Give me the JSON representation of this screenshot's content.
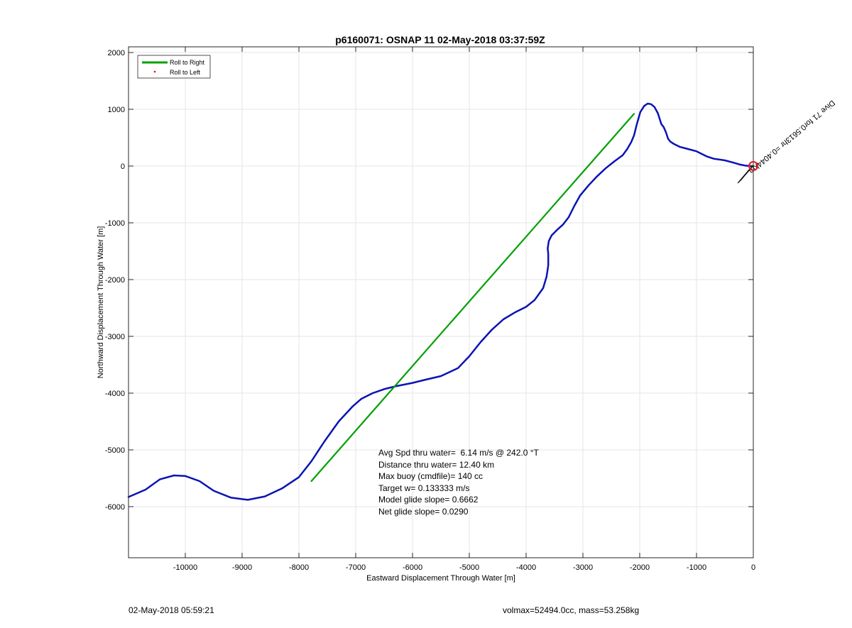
{
  "footer": {
    "timestamp": "02-May-2018 05:59:21",
    "volmax_mass": "volmax=52494.0cc, mass=53.258kg"
  },
  "chart_data": {
    "type": "line",
    "title": "p6160071: OSNAP 11 02-May-2018 03:37:59Z",
    "xlabel": "Eastward Displacement Through Water [m]",
    "ylabel": "Northward Displacement Through Water [m]",
    "xlim": [
      -11000,
      0
    ],
    "ylim": [
      -6900,
      2100
    ],
    "xticks": [
      -10000,
      -9000,
      -8000,
      -7000,
      -6000,
      -5000,
      -4000,
      -3000,
      -2000,
      -1000,
      0
    ],
    "yticks": [
      2000,
      1000,
      0,
      -1000,
      -2000,
      -3000,
      -4000,
      -5000,
      -6000
    ],
    "grid": true,
    "legend_position": "top-left",
    "legend": [
      {
        "label": "Roll to Right",
        "color": "#00a000",
        "marker": "line"
      },
      {
        "label": "Roll to Left",
        "color": "#ff0000",
        "marker": "dot"
      }
    ],
    "series": [
      {
        "color": "#0a14b4",
        "x": [
          -11000,
          -10700,
          -10450,
          -10200,
          -10000,
          -9750,
          -9500,
          -9200,
          -8900,
          -8600,
          -8300,
          -8000,
          -7780,
          -7550,
          -7300,
          -7050,
          -6900,
          -6700,
          -6500,
          -6300,
          -6000,
          -5800,
          -5500,
          -5200,
          -5000,
          -4800,
          -4600,
          -4400,
          -4200,
          -4000,
          -3850,
          -3700,
          -3640,
          -3610,
          -3610,
          -3620,
          -3600,
          -3550,
          -3450,
          -3350,
          -3250,
          -3150,
          -3050,
          -2900,
          -2750,
          -2600,
          -2450,
          -2300,
          -2220,
          -2150,
          -2100,
          -2050,
          -1990,
          -1920,
          -1860,
          -1800,
          -1740,
          -1680,
          -1620,
          -1580,
          -1540,
          -1500,
          -1460,
          -1400,
          -1300,
          -1150,
          -1000,
          -900,
          -820,
          -700,
          -500,
          -350,
          -250,
          -150,
          -60,
          0
        ],
        "y": [
          -5830,
          -5700,
          -5520,
          -5450,
          -5460,
          -5550,
          -5720,
          -5840,
          -5880,
          -5820,
          -5680,
          -5480,
          -5200,
          -4850,
          -4500,
          -4230,
          -4100,
          -4000,
          -3930,
          -3880,
          -3820,
          -3770,
          -3700,
          -3560,
          -3350,
          -3100,
          -2880,
          -2700,
          -2580,
          -2480,
          -2360,
          -2150,
          -1950,
          -1750,
          -1550,
          -1450,
          -1320,
          -1220,
          -1120,
          -1030,
          -900,
          -700,
          -520,
          -340,
          -180,
          -40,
          80,
          190,
          300,
          420,
          540,
          740,
          950,
          1060,
          1100,
          1090,
          1040,
          930,
          740,
          690,
          600,
          480,
          430,
          390,
          340,
          300,
          260,
          210,
          170,
          130,
          100,
          60,
          30,
          10,
          0,
          0
        ]
      },
      {
        "color": "#00a000",
        "x": [
          -7780,
          -2100
        ],
        "y": [
          -5550,
          920
        ]
      }
    ],
    "annotations": {
      "stats": [
        "Avg Spd thru water=  6.14 m/s @ 242.0 °T",
        "Distance thru water= 12.40 km",
        "Max buoy (cmdfile)= 140 cc",
        "Target w= 0.133333 m/s",
        "Model glide slope= 0.6662",
        "Net glide slope= 0.0290"
      ],
      "dive_label": "Dive 71 for0.5613hr =0.4044km",
      "dive_label_angle_deg": -40
    },
    "surface_marker": {
      "x": 0,
      "y": 0,
      "color": "#e02020",
      "marker": "circle"
    }
  }
}
